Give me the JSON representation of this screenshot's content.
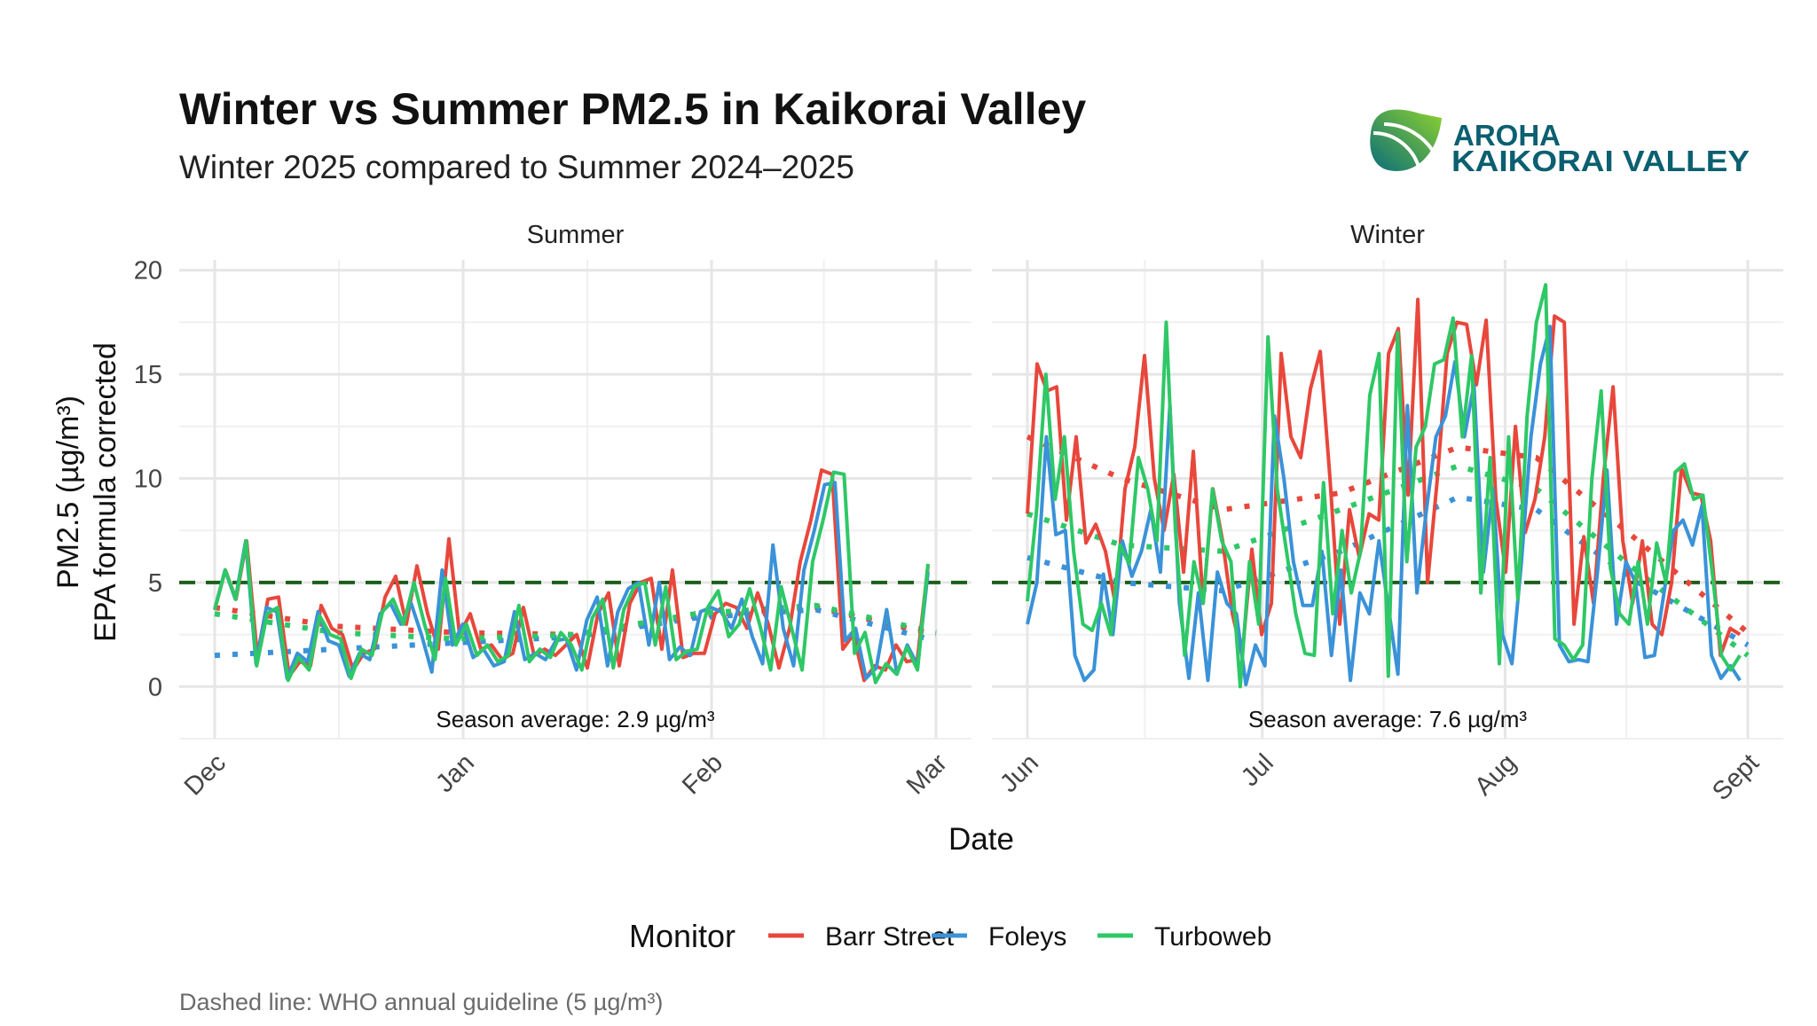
{
  "chart_data": {
    "type": "line",
    "title": "Winter vs Summer PM2.5 in Kaikorai Valley",
    "subtitle": "Winter 2025 compared to Summer 2024–2025",
    "xlabel": "Date",
    "ylabel_line1": "PM2.5 (µg/m³)",
    "ylabel_line2": "EPA formula corrected",
    "ylim": [
      -2.5,
      20.5
    ],
    "yticks": [
      0,
      5,
      10,
      15,
      20
    ],
    "ytick_labels": [
      "0",
      "5",
      "10",
      "15",
      "20"
    ],
    "guideline": {
      "value": 5,
      "color": "#1a5e1a"
    },
    "caption": "Dashed line: WHO annual guideline (5 µg/m³)",
    "legend": {
      "title": "Monitor",
      "position": "bottom"
    },
    "series_meta": [
      {
        "name": "Barr Street",
        "color": "#e8473c"
      },
      {
        "name": "Foleys",
        "color": "#3a92d8"
      },
      {
        "name": "Turboweb",
        "color": "#2ec866"
      }
    ],
    "panels": [
      {
        "label": "Summer",
        "day_range": [
          0,
          90
        ],
        "xticks": [
          {
            "day": 0,
            "label": "Dec"
          },
          {
            "day": 31,
            "label": "Jan"
          },
          {
            "day": 62,
            "label": "Feb"
          },
          {
            "day": 90,
            "label": "Mar"
          }
        ],
        "annotation": "Season average: 2.9 µg/m³",
        "data_days": [
          0,
          89
        ],
        "series": [
          {
            "name": "Barr Street",
            "values": [
              3.7,
              5.6,
              4.2,
              7,
              1.5,
              4.2,
              4.3,
              0.5,
              1.2,
              1,
              3.9,
              2.8,
              2.5,
              0.8,
              1.6,
              1.8,
              4.3,
              5.3,
              3,
              5.8,
              3.5,
              1.8,
              7.1,
              2.5,
              3.5,
              1.8,
              2,
              1.3,
              1.6,
              3.8,
              1.5,
              1.8,
              1.5,
              2,
              2.5,
              0.9,
              3.5,
              4.5,
              1,
              4,
              5,
              5.2,
              1.8,
              5.6,
              1.4,
              1.6,
              1.6,
              3.5,
              4,
              3.8,
              2.8,
              4.5,
              3,
              0.9,
              2.8,
              6,
              8,
              10.4,
              10.2,
              1.8,
              2.5,
              0.3,
              1,
              0.8,
              2,
              1.2,
              1.3,
              5.8
            ]
          },
          {
            "name": "Foleys",
            "values": [
              3.7,
              5.6,
              4.2,
              7,
              1.1,
              3.8,
              3.6,
              0.4,
              1.6,
              1.2,
              3.6,
              2.2,
              2,
              0.5,
              1.6,
              1.3,
              3.5,
              4,
              3,
              4,
              2.5,
              0.7,
              5.6,
              2,
              3,
              1.4,
              1.8,
              1,
              1.2,
              3.6,
              1.3,
              1.6,
              1.3,
              2.2,
              2.3,
              0.8,
              3.2,
              4.3,
              1,
              3.6,
              4.7,
              5,
              2,
              5,
              1.3,
              1.9,
              1.5,
              3.6,
              3.8,
              3.6,
              2.8,
              4.2,
              2.4,
              1.1,
              6.8,
              2.8,
              1,
              5.6,
              7.5,
              9.7,
              9.8,
              2.2,
              2.8,
              0.4,
              0.9,
              3.7,
              0.6,
              2,
              1,
              5.5
            ]
          },
          {
            "name": "Turboweb",
            "values": [
              3.7,
              5.6,
              4.2,
              7,
              1,
              3.5,
              3.8,
              0.3,
              1.4,
              0.8,
              3.4,
              2.5,
              2.3,
              0.4,
              1.8,
              1.5,
              3.6,
              4.2,
              3,
              5,
              3,
              1.3,
              5.2,
              2,
              3,
              1.5,
              2,
              1.2,
              1.5,
              3.9,
              1.2,
              1.8,
              1.4,
              2.6,
              2,
              0.8,
              3.3,
              4.2,
              0.9,
              3.7,
              4.8,
              5,
              2,
              4.8,
              1.3,
              1.7,
              1.8,
              3.8,
              4.6,
              2.4,
              3,
              4.7,
              2.9,
              0.8,
              4.8,
              2.8,
              0.8,
              6,
              8,
              10.3,
              10.2,
              1.6,
              2.6,
              0.2,
              1.1,
              0.6,
              1.9,
              0.8,
              5.9
            ]
          }
        ],
        "trends": [
          {
            "name": "Barr Street",
            "days": [
              0,
              15,
              30,
              45,
              60,
              75,
              90
            ],
            "values": [
              3.8,
              2.9,
              2.6,
              2.5,
              3.4,
              3.8,
              2.5
            ]
          },
          {
            "name": "Foleys",
            "days": [
              0,
              15,
              30,
              45,
              60,
              75,
              90
            ],
            "values": [
              1.5,
              1.8,
              2.1,
              2.4,
              3.3,
              3.7,
              2.2
            ]
          },
          {
            "name": "Turboweb",
            "days": [
              0,
              15,
              30,
              45,
              60,
              75,
              90
            ],
            "values": [
              3.5,
              2.6,
              2.3,
              2.5,
              3.5,
              3.9,
              2.6
            ]
          }
        ]
      },
      {
        "label": "Winter",
        "day_range": [
          0,
          92
        ],
        "xticks": [
          {
            "day": 0,
            "label": "Jun"
          },
          {
            "day": 30,
            "label": "Jul"
          },
          {
            "day": 61,
            "label": "Aug"
          },
          {
            "day": 92,
            "label": "Sept"
          }
        ],
        "annotation": "Season average: 7.6 µg/m³",
        "data_days": [
          0,
          91
        ],
        "series": [
          {
            "name": "Barr Street",
            "values": [
              8.3,
              15.5,
              14.2,
              14.4,
              8,
              12,
              6.9,
              7.8,
              6.5,
              4,
              9.5,
              11.5,
              15.9,
              10,
              7.5,
              10.2,
              5.5,
              11.3,
              4,
              9.5,
              7,
              3.5,
              1.5,
              6.6,
              2.5,
              4,
              16,
              12,
              11,
              14.3,
              16.1,
              10,
              3,
              8.5,
              6.2,
              8.3,
              8,
              16,
              17.2,
              9.2,
              18.6,
              5,
              10,
              16,
              17.5,
              17.4,
              14.5,
              17.6,
              9,
              5.5,
              12.5,
              7.4,
              9,
              12,
              17.8,
              17.5,
              3,
              7.2,
              4,
              10,
              14.4,
              7,
              4,
              7,
              3,
              2.5,
              5,
              10.5,
              9.3,
              9.2,
              7,
              1.5,
              2.8,
              2.5
            ]
          },
          {
            "name": "Foleys",
            "values": [
              3,
              5,
              12,
              7.3,
              7.5,
              1.5,
              0.3,
              0.8,
              5.4,
              2.5,
              7,
              5.3,
              6.5,
              8.5,
              5.5,
              13.5,
              4,
              0.4,
              4.5,
              0.3,
              5.5,
              4,
              3.5,
              0.1,
              2,
              1,
              13,
              10,
              6,
              3.9,
              3.9,
              6.5,
              1.5,
              5.6,
              0.3,
              4.5,
              3.5,
              7,
              3.8,
              0.6,
              13.5,
              4.5,
              8.5,
              12,
              13,
              15.6,
              12,
              14.5,
              5.5,
              9.5,
              2.5,
              1.1,
              6,
              12,
              15.5,
              17.3,
              2,
              1.2,
              1.3,
              1.2,
              5.5,
              10.4,
              3,
              6,
              5,
              1.4,
              1.5,
              4.5,
              7.5,
              8,
              6.8,
              8.7,
              1.5,
              0.4,
              1,
              0.3
            ]
          },
          {
            "name": "Turboweb",
            "values": [
              4.1,
              8.5,
              15,
              9,
              12,
              6.5,
              3,
              2.7,
              4,
              2.5,
              6.8,
              5.9,
              11,
              9.5,
              7,
              17.5,
              7.5,
              1.5,
              6,
              4,
              9.5,
              7,
              6,
              0,
              6,
              3,
              16.8,
              9.5,
              6.5,
              3.5,
              1.6,
              1.5,
              9.8,
              3.5,
              7.5,
              4.5,
              6.5,
              14,
              16,
              0.5,
              17,
              6,
              11.5,
              12.5,
              15.5,
              15.7,
              17.7,
              12,
              15.9,
              4.5,
              11,
              1.1,
              12,
              4.2,
              13,
              17.5,
              19.3,
              2.3,
              2,
              1.3,
              2,
              10,
              14.2,
              5.7,
              3.5,
              3,
              6,
              3,
              6.9,
              5,
              10.3,
              10.7,
              9,
              9.2,
              5.5,
              1.5,
              0.8,
              1.5
            ]
          }
        ],
        "trends": [
          {
            "name": "Barr Street",
            "days": [
              0,
              12,
              25,
              40,
              55,
              65,
              78,
              92
            ],
            "values": [
              12,
              10,
              8.5,
              9.3,
              11.5,
              11,
              7,
              2.6
            ]
          },
          {
            "name": "Foleys",
            "days": [
              0,
              12,
              25,
              40,
              55,
              65,
              78,
              92
            ],
            "values": [
              6.2,
              5,
              4.6,
              6.5,
              9.1,
              8.5,
              5,
              2
            ]
          },
          {
            "name": "Turboweb",
            "days": [
              0,
              12,
              25,
              40,
              55,
              65,
              78,
              92
            ],
            "values": [
              8.3,
              6.8,
              6.5,
              8.5,
              10.6,
              9.5,
              5.5,
              1.5
            ]
          }
        ]
      }
    ]
  },
  "logo": {
    "line1": "AROHA",
    "line2": "KAIKORAI VALLEY"
  }
}
